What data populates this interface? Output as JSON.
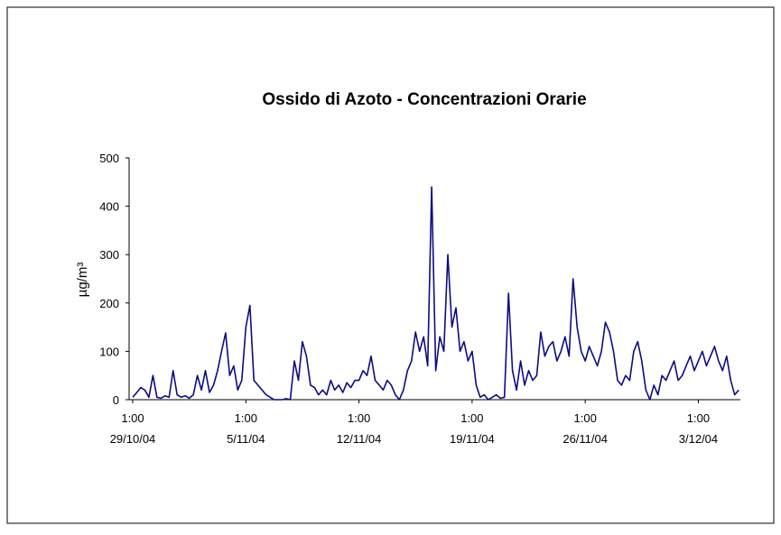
{
  "chart_data": {
    "type": "line",
    "title": "Ossido di Azoto -  Concentrazioni Orarie",
    "ylabel": "µg/m³",
    "xlim": [
      0,
      37.6
    ],
    "ylim": [
      0,
      500
    ],
    "yticks": [
      0,
      100,
      200,
      300,
      400,
      500
    ],
    "xticks": [
      {
        "value": 0,
        "label": "1:00\n29/10/04"
      },
      {
        "value": 7,
        "label": "1:00\n5/11/04"
      },
      {
        "value": 14,
        "label": "1:00\n12/11/04"
      },
      {
        "value": 21,
        "label": "1:00\n19/11/04"
      },
      {
        "value": 28,
        "label": "1:00\n26/11/04"
      },
      {
        "value": 35,
        "label": "1:00\n3/12/04"
      }
    ],
    "x": [
      0,
      0.25,
      0.5,
      0.75,
      1,
      1.25,
      1.5,
      1.75,
      2,
      2.25,
      2.5,
      2.75,
      3,
      3.25,
      3.5,
      3.75,
      4,
      4.25,
      4.5,
      4.75,
      5,
      5.25,
      5.5,
      5.75,
      6,
      6.25,
      6.5,
      6.75,
      7,
      7.25,
      7.5,
      7.75,
      8,
      8.25,
      8.5,
      8.75,
      9,
      9.25,
      9.5,
      9.75,
      10,
      10.25,
      10.5,
      10.75,
      11,
      11.25,
      11.5,
      11.75,
      12,
      12.25,
      12.5,
      12.75,
      13,
      13.25,
      13.5,
      13.75,
      14,
      14.25,
      14.5,
      14.75,
      15,
      15.25,
      15.5,
      15.75,
      16,
      16.25,
      16.5,
      16.75,
      17,
      17.25,
      17.5,
      17.75,
      18,
      18.25,
      18.5,
      18.75,
      19,
      19.25,
      19.5,
      19.75,
      20,
      20.25,
      20.5,
      20.75,
      21,
      21.25,
      21.5,
      21.75,
      22,
      22.25,
      22.5,
      22.75,
      23,
      23.25,
      23.5,
      23.75,
      24,
      24.25,
      24.5,
      24.75,
      25,
      25.25,
      25.5,
      25.75,
      26,
      26.25,
      26.5,
      26.75,
      27,
      27.25,
      27.5,
      27.75,
      28,
      28.25,
      28.5,
      28.75,
      29,
      29.25,
      29.5,
      29.75,
      30,
      30.25,
      30.5,
      30.75,
      31,
      31.25,
      31.5,
      31.75,
      32,
      32.25,
      32.5,
      32.75,
      33,
      33.25,
      33.5,
      33.75,
      34,
      34.25,
      34.5,
      34.75,
      35,
      35.25,
      35.5,
      35.75,
      36,
      36.25,
      36.5,
      36.75,
      37,
      37.25,
      37.5
    ],
    "series": [
      {
        "color": "#0c0c82",
        "values": [
          5,
          15,
          25,
          20,
          5,
          50,
          5,
          3,
          8,
          5,
          60,
          10,
          5,
          8,
          3,
          10,
          50,
          20,
          60,
          15,
          30,
          60,
          100,
          138,
          50,
          70,
          20,
          40,
          150,
          195,
          40,
          30,
          20,
          10,
          5,
          0,
          0,
          0,
          2,
          0,
          80,
          40,
          120,
          90,
          30,
          25,
          10,
          20,
          10,
          40,
          20,
          30,
          15,
          35,
          25,
          40,
          40,
          60,
          50,
          90,
          40,
          30,
          20,
          40,
          30,
          10,
          0,
          20,
          60,
          80,
          140,
          100,
          130,
          70,
          440,
          60,
          130,
          100,
          300,
          150,
          190,
          100,
          120,
          80,
          100,
          30,
          5,
          10,
          0,
          5,
          10,
          3,
          5,
          220,
          60,
          20,
          80,
          30,
          60,
          40,
          50,
          140,
          90,
          110,
          120,
          80,
          100,
          130,
          90,
          250,
          150,
          100,
          80,
          110,
          90,
          70,
          100,
          160,
          140,
          100,
          40,
          30,
          50,
          40,
          100,
          120,
          80,
          20,
          0,
          30,
          10,
          50,
          40,
          60,
          80,
          40,
          50,
          70,
          90,
          60,
          80,
          100,
          70,
          90,
          110,
          80,
          60,
          90,
          40,
          10,
          20
        ]
      }
    ]
  }
}
